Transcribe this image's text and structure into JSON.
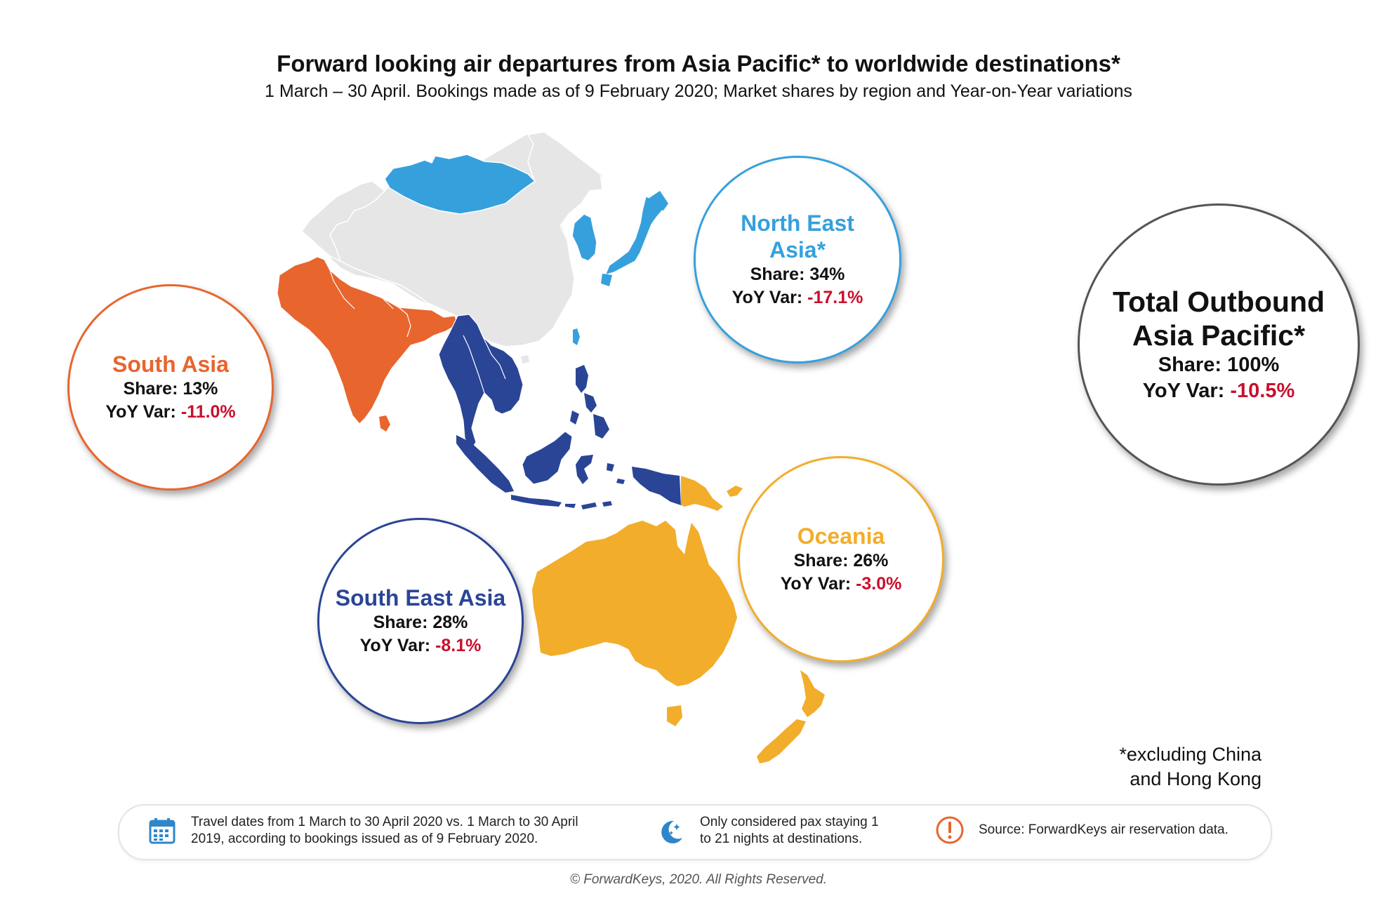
{
  "header": {
    "title": "Forward looking air departures from Asia Pacific* to worldwide destinations*",
    "subtitle": "1 March – 30 April. Bookings made as of 9 February 2020; Market shares by region and Year-on-Year variations"
  },
  "colors": {
    "south_asia": "#e8652e",
    "north_east_asia": "#36a0dd",
    "south_east_asia": "#2a4596",
    "oceania": "#f2ad2b",
    "china": "#e6e6e6",
    "negative": "#c8102e"
  },
  "regions": {
    "south_asia": {
      "name": "South Asia",
      "share_label": "Share: ",
      "share": "13%",
      "yoy_label": "YoY Var: ",
      "yoy": "-11.0%"
    },
    "north_east_asia": {
      "name": "North East Asia*",
      "share_label": "Share: ",
      "share": "34%",
      "yoy_label": "YoY Var: ",
      "yoy": "-17.1%"
    },
    "south_east_asia": {
      "name": "South East Asia",
      "share_label": "Share: ",
      "share": "28%",
      "yoy_label": "YoY Var: ",
      "yoy": "-8.1%"
    },
    "oceania": {
      "name": "Oceania",
      "share_label": "Share: ",
      "share": "26%",
      "yoy_label": "YoY Var: ",
      "yoy": "-3.0%"
    },
    "total": {
      "name": "Total Outbound Asia Pacific*",
      "share_label": "Share: ",
      "share": "100%",
      "yoy_label": "YoY Var: ",
      "yoy": "-10.5%"
    }
  },
  "note": {
    "line1": "*excluding China",
    "line2": "and Hong Kong"
  },
  "footer": {
    "travel_dates_line1": "Travel dates from 1 March to 30 April 2020 vs. 1 March to 30 April",
    "travel_dates_line2": "2019, according to bookings issued as of 9 February 2020.",
    "nights_line1": "Only considered pax staying 1",
    "nights_line2": "to 21 nights at destinations.",
    "source": "Source: ForwardKeys air reservation data.",
    "icons": [
      "calendar-icon",
      "moon-stars-icon",
      "exclamation-icon"
    ]
  },
  "copyright": "© ForwardKeys, 2020. All Rights Reserved."
}
